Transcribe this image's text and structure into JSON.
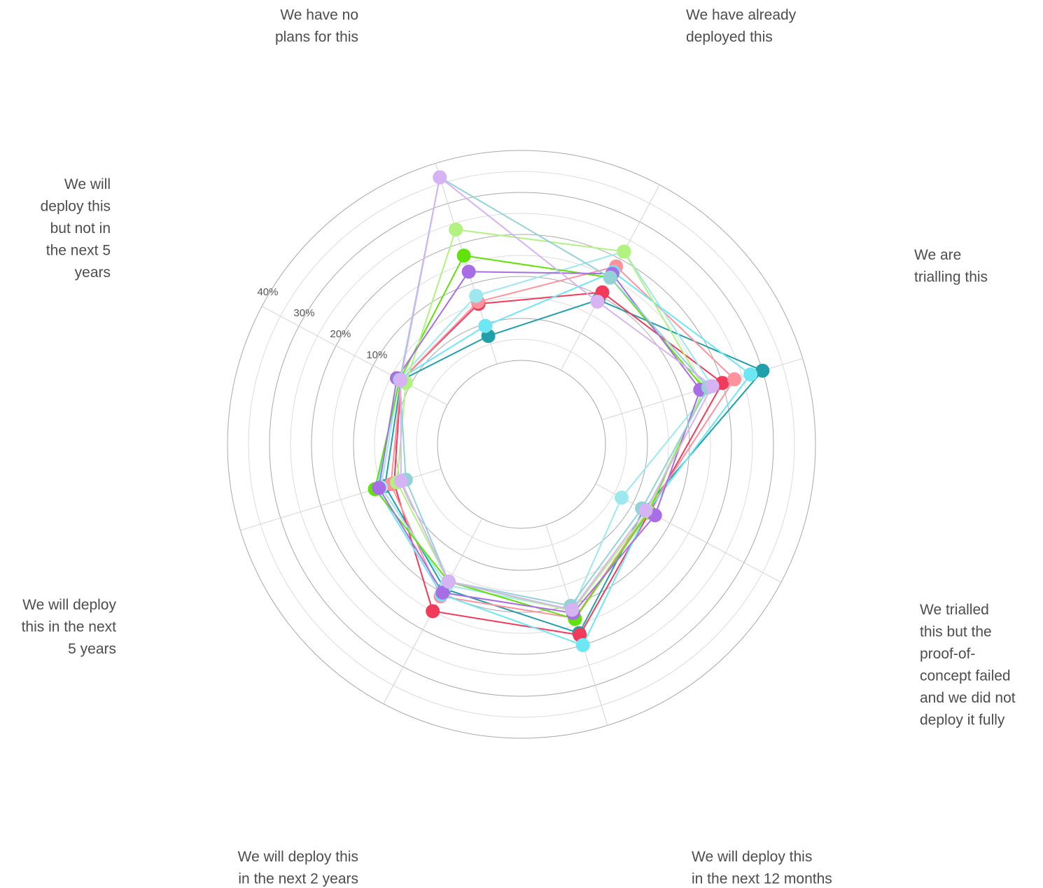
{
  "chart_data": {
    "type": "radar",
    "categories": [
      "We have no plans for this",
      "We have already deployed this",
      "We are trialling this",
      "We trialled this but the proof-of-concept failed and we did not deploy it fully",
      "We will deploy this in the next 12 months",
      "We will deploy this in the next 2 years",
      "We will deploy this in the next 5 years",
      "We will deploy this but not in the next 5 years"
    ],
    "category_label_lines": [
      [
        "We have no",
        "plans for this"
      ],
      [
        "We have already",
        "deployed this"
      ],
      [
        "We are",
        "trialling this"
      ],
      [
        "We trialled",
        "this but the",
        "proof-of-",
        "concept failed",
        "and we did not",
        "deploy it fully"
      ],
      [
        "We will deploy this",
        "in the next 12 months"
      ],
      [
        "We will deploy this",
        "in the next 2 years"
      ],
      [
        "We will deploy",
        "this in the next",
        "5 years"
      ],
      [
        "We will",
        "deploy this",
        "but not in",
        "the next 5",
        "years"
      ]
    ],
    "tick_labels": [
      "10%",
      "20%",
      "30%",
      "40%"
    ],
    "rlim": [
      -8,
      42
    ],
    "grid": true,
    "series": [
      {
        "color": "#21a0aa",
        "values": [
          -1,
          11,
          32,
          5,
          19,
          11,
          6,
          4.5
        ]
      },
      {
        "color": "#f23a5a",
        "values": [
          7,
          13,
          22,
          6.5,
          19.5,
          17,
          3.7,
          4.5
        ]
      },
      {
        "color": "#ff929d",
        "values": [
          7.5,
          20,
          25,
          6,
          15.3,
          13,
          4.5,
          4.5
        ]
      },
      {
        "color": "#6ee7f5",
        "values": [
          1.5,
          18.5,
          29,
          6,
          22,
          12.5,
          8,
          5
        ]
      },
      {
        "color": "#9ce8ee",
        "values": [
          9,
          24,
          19.5,
          -1,
          13.2,
          10,
          7,
          5
        ]
      },
      {
        "color": "#60e20a",
        "values": [
          19,
          17,
          17.5,
          6.3,
          15.5,
          9,
          8.5,
          4.8
        ]
      },
      {
        "color": "#b2f280",
        "values": [
          25.5,
          24,
          17.5,
          6,
          13.5,
          9,
          3,
          3.2
        ]
      },
      {
        "color": "#a76ee6",
        "values": [
          15,
          18,
          16.5,
          8,
          14,
          12,
          7.5,
          5.6
        ]
      },
      {
        "color": "#93d2d6",
        "values": [
          38.5,
          17,
          18.5,
          4.5,
          12.2,
          9,
          0.8,
          4.8
        ]
      },
      {
        "color": "#d6b4f3",
        "values": [
          38.5,
          10.5,
          19.5,
          5.5,
          13.2,
          9,
          2,
          4.6
        ]
      }
    ]
  }
}
